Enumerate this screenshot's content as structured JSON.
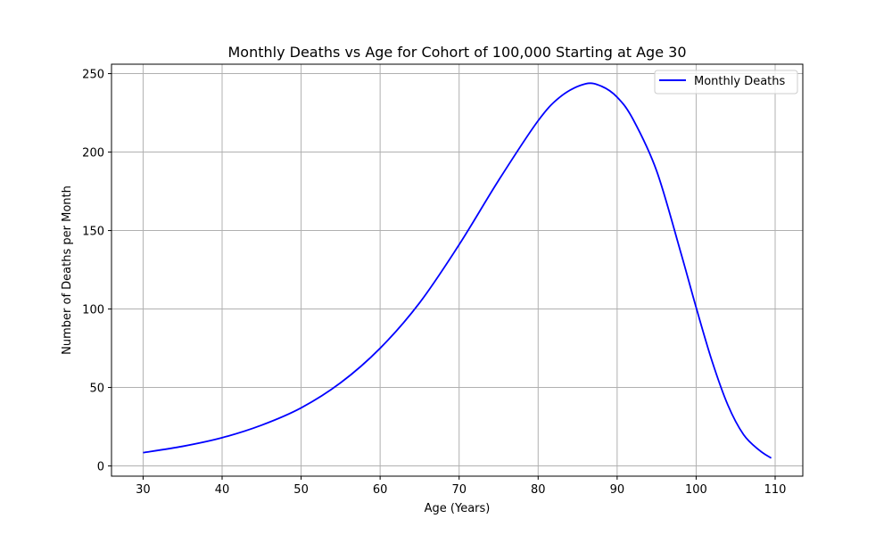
{
  "chart_data": {
    "type": "line",
    "title": "Monthly Deaths vs Age for Cohort of 100,000 Starting at Age 30",
    "xlabel": "Age (Years)",
    "ylabel": "Number of Deaths per Month",
    "xlim": [
      26,
      113.5
    ],
    "ylim": [
      -6.5,
      256
    ],
    "xticks": [
      30,
      40,
      50,
      60,
      70,
      80,
      90,
      100,
      110
    ],
    "yticks": [
      0,
      50,
      100,
      150,
      200,
      250
    ],
    "grid": true,
    "legend_position": "top-right",
    "series": [
      {
        "name": "Monthly Deaths",
        "color": "#0000ff",
        "x": [
          30,
          35,
          40,
          45,
          50,
          55,
          60,
          65,
          70,
          75,
          80,
          83,
          86,
          88,
          90,
          92,
          95,
          98,
          100,
          102,
          104,
          106,
          108,
          109.5
        ],
        "y": [
          8.5,
          12.5,
          18,
          26,
          37,
          53,
          75,
          104,
          141,
          182,
          220,
          236,
          243.5,
          242,
          235,
          221,
          188,
          137,
          101,
          67,
          39,
          20,
          10,
          5
        ]
      }
    ]
  }
}
